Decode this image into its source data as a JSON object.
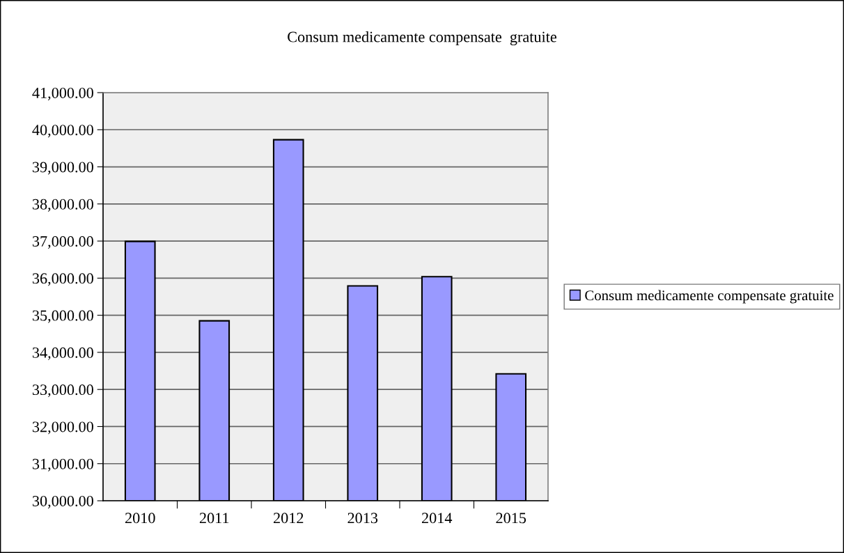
{
  "chart_data": {
    "type": "bar",
    "title": "Consum medicamente compensate  gratuite",
    "categories": [
      "2010",
      "2011",
      "2012",
      "2013",
      "2014",
      "2015"
    ],
    "series": [
      {
        "name": "Consum medicamente compensate gratuite",
        "color": "#9999ff",
        "values": [
          36990,
          34850,
          39730,
          35790,
          36040,
          33420
        ]
      }
    ],
    "ylim": [
      30000,
      41000
    ],
    "yticks": [
      {
        "value": 30000,
        "label": "30,000.00"
      },
      {
        "value": 31000,
        "label": "31,000.00"
      },
      {
        "value": 32000,
        "label": "32,000.00"
      },
      {
        "value": 33000,
        "label": "33,000.00"
      },
      {
        "value": 34000,
        "label": "34,000.00"
      },
      {
        "value": 35000,
        "label": "35,000.00"
      },
      {
        "value": 36000,
        "label": "36,000.00"
      },
      {
        "value": 37000,
        "label": "37,000.00"
      },
      {
        "value": 38000,
        "label": "38,000.00"
      },
      {
        "value": 39000,
        "label": "39,000.00"
      },
      {
        "value": 40000,
        "label": "40,000.00"
      },
      {
        "value": 41000,
        "label": "41,000.00"
      }
    ],
    "grid": "y",
    "legend": "right"
  }
}
